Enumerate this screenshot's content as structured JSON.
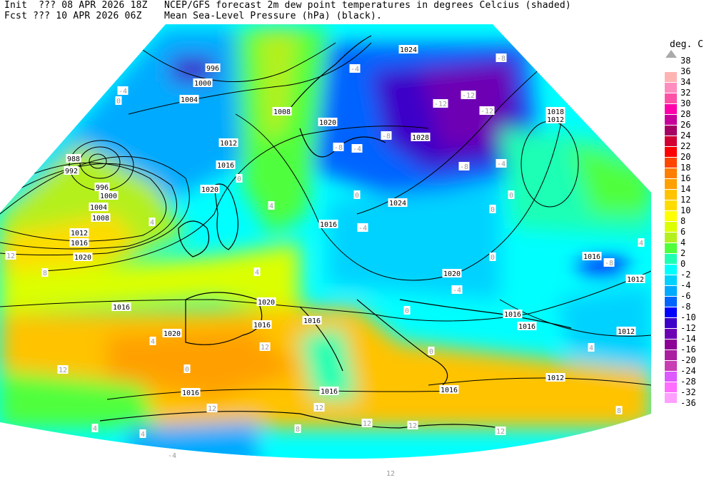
{
  "header": {
    "line1_left": "Init  ??? 08 APR 2026 18Z",
    "line1_right": "NCEP/GFS forecast 2m dew point temperatures in degrees Celcius (shaded)",
    "line2_left": "Fcst ??? 10 APR 2026 06Z",
    "line2_right": "Mean Sea-Level Pressure (hPa) (black)."
  },
  "legend": {
    "title": "deg. C",
    "top_label": "38",
    "labels": [
      "36",
      "34",
      "32",
      "30",
      "28",
      "26",
      "24",
      "22",
      "20",
      "18",
      "16",
      "14",
      "12",
      "10",
      "8",
      "6",
      "4",
      "2",
      "0",
      "-2",
      "-4",
      "-6",
      "-8",
      "-10",
      "-12",
      "-14",
      "-16",
      "-20",
      "-24",
      "-28",
      "-32",
      "-36"
    ],
    "colors": [
      "#ffb4b4",
      "#ff8cbe",
      "#ff50a8",
      "#ff00aa",
      "#c8009b",
      "#a50064",
      "#d20032",
      "#ff0000",
      "#ff4600",
      "#ff7d00",
      "#ffa000",
      "#ffc300",
      "#ffdc00",
      "#ffff00",
      "#dcff00",
      "#b4f01e",
      "#50ff3c",
      "#1effb4",
      "#00ffff",
      "#00d2ff",
      "#00aaff",
      "#0064ff",
      "#0000ff",
      "#3c00c8",
      "#6e00b4",
      "#8c0096",
      "#aa1ea0",
      "#c83cb4",
      "#dc5aff",
      "#ff6eff",
      "#ffa0ff"
    ]
  },
  "isobar_labels": [
    "996",
    "1000",
    "1004",
    "1008",
    "1012",
    "1016",
    "1020",
    "988",
    "992",
    "996",
    "1000",
    "1004",
    "1008",
    "1012",
    "1016",
    "1020",
    "1020",
    "1024",
    "1028",
    "1024",
    "1016",
    "1018",
    "1012",
    "1020",
    "1020",
    "1016",
    "1020",
    "1016",
    "1016",
    "1016",
    "1016",
    "1016",
    "1012",
    "1012",
    "1012",
    "1016",
    "1016",
    "1016"
  ],
  "dewpoint_labels": [
    "-4",
    "0",
    "-4",
    "-8",
    "-12",
    "-12",
    "-12",
    "-8",
    "-8",
    "-4",
    "-4",
    "-8",
    "0",
    "0",
    "0",
    "-4",
    "0",
    "4",
    "12",
    "8",
    "4",
    "4",
    "-4",
    "0",
    "0",
    "0",
    "12",
    "12",
    "4",
    "0",
    "12",
    "12",
    "12",
    "12",
    "12",
    "12",
    "-4",
    "4",
    "4",
    "8",
    "-8",
    "4",
    "4",
    "8"
  ]
}
